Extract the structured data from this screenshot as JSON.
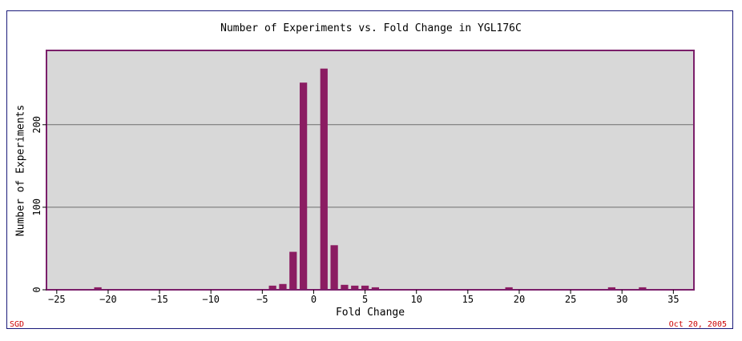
{
  "chart_data": {
    "type": "bar",
    "title": "Number of Experiments vs. Fold Change in YGL176C",
    "xlabel": "Fold Change",
    "ylabel": "Number of Experiments",
    "xlim": [
      -26,
      37
    ],
    "ylim": [
      0,
      290
    ],
    "x_ticks": [
      -25,
      -20,
      -15,
      -10,
      -5,
      0,
      5,
      10,
      15,
      20,
      25,
      30,
      35
    ],
    "y_ticks": [
      0,
      100,
      200
    ],
    "grid_y": true,
    "x": [
      -21,
      -4,
      -3,
      -2,
      -1,
      1,
      2,
      3,
      4,
      5,
      6,
      19,
      29,
      32
    ],
    "values": [
      3,
      5,
      7,
      46,
      251,
      268,
      54,
      6,
      5,
      5,
      3,
      3,
      3,
      3
    ],
    "colors": {
      "bar": "#8b1c62",
      "plot_bg": "#d8d8d8",
      "plot_border": "#7b1f6a",
      "grid": "#6e6e6e"
    }
  },
  "footer": {
    "left": "SGD",
    "right": "Oct 20, 2005"
  }
}
